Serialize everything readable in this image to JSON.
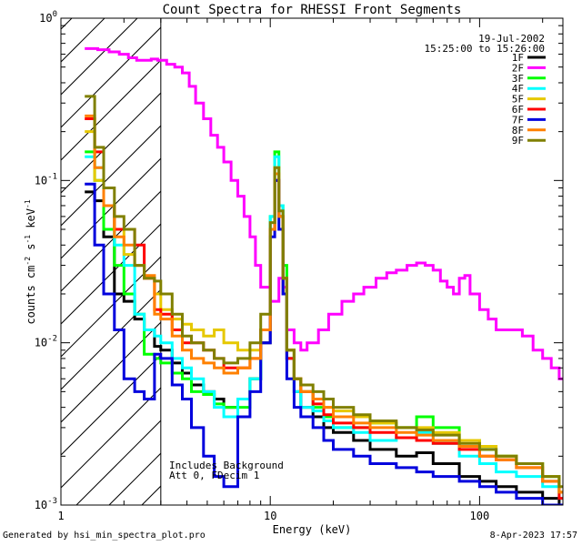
{
  "chart_data": {
    "type": "line",
    "title": "Count Spectra for RHESSI Front Segments",
    "xlabel": "Energy (keV)",
    "ylabel_main": "counts cm",
    "ylabel_sup1": "-2",
    "ylabel_mid": " s",
    "ylabel_sup2": "-1",
    "ylabel_end": " keV",
    "ylabel_sup3": "-1",
    "x_scale": "log",
    "y_scale": "log",
    "xlim": [
      1,
      250
    ],
    "ylim": [
      0.001,
      1
    ],
    "x_ticks": [
      {
        "value": 1,
        "label": "1"
      },
      {
        "value": 10,
        "label": "10"
      },
      {
        "value": 100,
        "label": "100"
      }
    ],
    "y_ticks": [
      {
        "value": 0.001,
        "base": "10",
        "exp": "-3"
      },
      {
        "value": 0.01,
        "base": "10",
        "exp": "-2"
      },
      {
        "value": 0.1,
        "base": "10",
        "exp": "-1"
      },
      {
        "value": 1,
        "base": "10",
        "exp": "0"
      }
    ],
    "hatched_region": [
      1,
      3
    ],
    "date": "19-Jul-2002",
    "time_range": "15:25:00 to 15:26:00",
    "annotation_lines": [
      "Includes Background",
      "Att 0, FDecim 1"
    ],
    "legend_position": "top-right",
    "series": [
      {
        "name": "1F",
        "color": "#000000",
        "x": [
          1.3,
          1.45,
          1.6,
          1.8,
          2.0,
          2.25,
          2.5,
          2.8,
          3.0,
          3.4,
          3.8,
          4.2,
          4.8,
          5.4,
          6.0,
          7.0,
          8.0,
          9.0,
          10.0,
          10.5,
          11.0,
          11.5,
          12.0,
          13.0,
          14.0,
          16.0,
          18.0,
          20.0,
          25.0,
          30.0,
          40.0,
          50.0,
          60.0,
          80.0,
          100.0,
          120.0,
          150.0,
          200.0,
          240.0
        ],
        "y": [
          0.085,
          0.075,
          0.045,
          0.02,
          0.018,
          0.014,
          0.012,
          0.0095,
          0.009,
          0.0075,
          0.0065,
          0.0055,
          0.005,
          0.0045,
          0.004,
          0.0045,
          0.006,
          0.01,
          0.05,
          0.1,
          0.06,
          0.02,
          0.008,
          0.005,
          0.004,
          0.0035,
          0.003,
          0.0028,
          0.0025,
          0.0022,
          0.002,
          0.0021,
          0.0018,
          0.0015,
          0.0014,
          0.0013,
          0.0012,
          0.0011,
          0.001
        ]
      },
      {
        "name": "2F",
        "color": "#ff00ff",
        "x": [
          1.3,
          1.5,
          1.7,
          1.9,
          2.1,
          2.3,
          2.5,
          2.7,
          2.9,
          3.2,
          3.5,
          3.8,
          4.1,
          4.4,
          4.8,
          5.2,
          5.6,
          6.0,
          6.5,
          7.0,
          7.5,
          8.0,
          8.5,
          9.0,
          10.0,
          11.0,
          11.5,
          12.0,
          13.0,
          14.0,
          15.0,
          17.0,
          19.0,
          22.0,
          25.0,
          28.0,
          32.0,
          36.0,
          40.0,
          45.0,
          50.0,
          55.0,
          60.0,
          65.0,
          70.0,
          75.0,
          80.0,
          85.0,
          90.0,
          100.0,
          110.0,
          120.0,
          140.0,
          160.0,
          180.0,
          200.0,
          220.0,
          240.0
        ],
        "y": [
          0.65,
          0.64,
          0.62,
          0.6,
          0.57,
          0.55,
          0.55,
          0.56,
          0.55,
          0.52,
          0.5,
          0.46,
          0.38,
          0.3,
          0.24,
          0.19,
          0.16,
          0.13,
          0.1,
          0.08,
          0.06,
          0.045,
          0.03,
          0.022,
          0.018,
          0.025,
          0.022,
          0.012,
          0.01,
          0.009,
          0.01,
          0.012,
          0.015,
          0.018,
          0.02,
          0.022,
          0.025,
          0.027,
          0.028,
          0.03,
          0.031,
          0.03,
          0.028,
          0.024,
          0.022,
          0.02,
          0.025,
          0.026,
          0.02,
          0.016,
          0.014,
          0.012,
          0.012,
          0.011,
          0.009,
          0.008,
          0.007,
          0.006
        ]
      },
      {
        "name": "3F",
        "color": "#00ff00",
        "x": [
          1.3,
          1.45,
          1.6,
          1.8,
          2.0,
          2.25,
          2.5,
          2.8,
          3.0,
          3.4,
          3.8,
          4.2,
          4.8,
          5.4,
          6.0,
          7.0,
          8.0,
          9.0,
          10.0,
          10.5,
          11.0,
          11.5,
          12.0,
          13.0,
          14.0,
          16.0,
          18.0,
          20.0,
          25.0,
          30.0,
          40.0,
          50.0,
          60.0,
          80.0,
          100.0,
          120.0,
          150.0,
          200.0,
          240.0
        ],
        "y": [
          0.15,
          0.1,
          0.05,
          0.03,
          0.02,
          0.015,
          0.0085,
          0.008,
          0.0075,
          0.0065,
          0.006,
          0.005,
          0.0048,
          0.0042,
          0.004,
          0.004,
          0.006,
          0.012,
          0.06,
          0.15,
          0.07,
          0.03,
          0.009,
          0.006,
          0.005,
          0.004,
          0.0035,
          0.003,
          0.003,
          0.0032,
          0.003,
          0.0035,
          0.003,
          0.0025,
          0.0022,
          0.002,
          0.0018,
          0.0015,
          0.0012
        ]
      },
      {
        "name": "4F",
        "color": "#00ffff",
        "x": [
          1.3,
          1.45,
          1.6,
          1.8,
          2.0,
          2.25,
          2.5,
          2.8,
          3.0,
          3.4,
          3.8,
          4.2,
          4.8,
          5.4,
          6.0,
          7.0,
          8.0,
          9.0,
          10.0,
          10.5,
          11.0,
          11.5,
          12.0,
          13.0,
          14.0,
          16.0,
          18.0,
          20.0,
          25.0,
          30.0,
          40.0,
          50.0,
          60.0,
          80.0,
          100.0,
          120.0,
          150.0,
          200.0,
          240.0
        ],
        "y": [
          0.14,
          0.12,
          0.07,
          0.04,
          0.03,
          0.015,
          0.012,
          0.011,
          0.01,
          0.008,
          0.007,
          0.006,
          0.005,
          0.004,
          0.0035,
          0.0045,
          0.006,
          0.012,
          0.06,
          0.14,
          0.07,
          0.025,
          0.008,
          0.005,
          0.004,
          0.0038,
          0.0033,
          0.003,
          0.0028,
          0.0025,
          0.0026,
          0.0028,
          0.0024,
          0.002,
          0.0018,
          0.0016,
          0.0015,
          0.0013,
          0.0011
        ]
      },
      {
        "name": "5F",
        "color": "#e6c800",
        "x": [
          1.3,
          1.45,
          1.6,
          1.8,
          2.0,
          2.25,
          2.5,
          2.8,
          3.0,
          3.4,
          3.8,
          4.2,
          4.8,
          5.4,
          6.0,
          7.0,
          8.0,
          9.0,
          10.0,
          10.5,
          11.0,
          11.5,
          12.0,
          13.0,
          14.0,
          16.0,
          18.0,
          20.0,
          25.0,
          30.0,
          40.0,
          50.0,
          60.0,
          80.0,
          100.0,
          120.0,
          150.0,
          200.0,
          240.0
        ],
        "y": [
          0.2,
          0.1,
          0.07,
          0.05,
          0.035,
          0.03,
          0.025,
          0.02,
          0.016,
          0.014,
          0.013,
          0.012,
          0.011,
          0.012,
          0.01,
          0.009,
          0.009,
          0.012,
          0.05,
          0.12,
          0.06,
          0.02,
          0.009,
          0.006,
          0.005,
          0.0045,
          0.004,
          0.0038,
          0.0035,
          0.0032,
          0.003,
          0.003,
          0.0028,
          0.0025,
          0.0023,
          0.002,
          0.0018,
          0.0015,
          0.0012
        ]
      },
      {
        "name": "6F",
        "color": "#ff0000",
        "x": [
          1.3,
          1.45,
          1.6,
          1.8,
          2.0,
          2.25,
          2.5,
          2.8,
          3.0,
          3.4,
          3.8,
          4.2,
          4.8,
          5.4,
          6.0,
          7.0,
          8.0,
          9.0,
          10.0,
          10.5,
          11.0,
          11.5,
          12.0,
          13.0,
          14.0,
          16.0,
          18.0,
          20.0,
          25.0,
          30.0,
          40.0,
          50.0,
          60.0,
          80.0,
          100.0,
          120.0,
          150.0,
          200.0,
          240.0
        ],
        "y": [
          0.24,
          0.15,
          0.07,
          0.05,
          0.05,
          0.04,
          0.025,
          0.016,
          0.015,
          0.012,
          0.01,
          0.01,
          0.009,
          0.008,
          0.007,
          0.007,
          0.008,
          0.012,
          0.05,
          0.1,
          0.06,
          0.025,
          0.008,
          0.006,
          0.005,
          0.0042,
          0.0036,
          0.0032,
          0.003,
          0.0028,
          0.0026,
          0.0025,
          0.0024,
          0.0022,
          0.002,
          0.0019,
          0.0017,
          0.0014,
          0.0011
        ]
      },
      {
        "name": "7F",
        "color": "#0000dd",
        "x": [
          1.3,
          1.45,
          1.6,
          1.8,
          2.0,
          2.25,
          2.5,
          2.8,
          3.0,
          3.4,
          3.8,
          4.2,
          4.8,
          5.4,
          6.0,
          7.0,
          8.0,
          9.0,
          10.0,
          10.5,
          11.0,
          11.5,
          12.0,
          13.0,
          14.0,
          16.0,
          18.0,
          20.0,
          25.0,
          30.0,
          40.0,
          50.0,
          60.0,
          80.0,
          100.0,
          120.0,
          150.0,
          200.0,
          240.0
        ],
        "y": [
          0.095,
          0.04,
          0.02,
          0.012,
          0.006,
          0.005,
          0.0045,
          0.0085,
          0.008,
          0.0055,
          0.0045,
          0.003,
          0.002,
          0.0015,
          0.0013,
          0.0035,
          0.005,
          0.01,
          0.045,
          0.1,
          0.05,
          0.02,
          0.006,
          0.004,
          0.0035,
          0.003,
          0.0025,
          0.0022,
          0.002,
          0.0018,
          0.0017,
          0.0016,
          0.0015,
          0.0014,
          0.0013,
          0.0012,
          0.0011,
          0.001,
          0.001
        ]
      },
      {
        "name": "8F",
        "color": "#ff8000",
        "x": [
          1.3,
          1.45,
          1.6,
          1.8,
          2.0,
          2.25,
          2.5,
          2.8,
          3.0,
          3.4,
          3.8,
          4.2,
          4.8,
          5.4,
          6.0,
          7.0,
          8.0,
          9.0,
          10.0,
          10.5,
          11.0,
          11.5,
          12.0,
          13.0,
          14.0,
          16.0,
          18.0,
          20.0,
          25.0,
          30.0,
          40.0,
          50.0,
          60.0,
          80.0,
          100.0,
          120.0,
          150.0,
          200.0,
          240.0
        ],
        "y": [
          0.25,
          0.12,
          0.07,
          0.045,
          0.04,
          0.03,
          0.026,
          0.015,
          0.014,
          0.011,
          0.009,
          0.008,
          0.0075,
          0.007,
          0.0065,
          0.007,
          0.008,
          0.012,
          0.05,
          0.11,
          0.06,
          0.025,
          0.009,
          0.006,
          0.005,
          0.0045,
          0.004,
          0.0035,
          0.0032,
          0.003,
          0.0028,
          0.0027,
          0.0025,
          0.0023,
          0.002,
          0.0019,
          0.0017,
          0.0014,
          0.0012
        ]
      },
      {
        "name": "9F",
        "color": "#808000",
        "x": [
          1.3,
          1.45,
          1.6,
          1.8,
          2.0,
          2.25,
          2.5,
          2.8,
          3.0,
          3.4,
          3.8,
          4.2,
          4.8,
          5.4,
          6.0,
          7.0,
          8.0,
          9.0,
          10.0,
          10.5,
          11.0,
          11.5,
          12.0,
          13.0,
          14.0,
          16.0,
          18.0,
          20.0,
          25.0,
          30.0,
          40.0,
          50.0,
          60.0,
          80.0,
          100.0,
          120.0,
          150.0,
          200.0,
          240.0
        ],
        "y": [
          0.33,
          0.16,
          0.09,
          0.06,
          0.05,
          0.03,
          0.025,
          0.024,
          0.02,
          0.015,
          0.011,
          0.01,
          0.009,
          0.008,
          0.0075,
          0.008,
          0.01,
          0.015,
          0.055,
          0.12,
          0.065,
          0.025,
          0.009,
          0.006,
          0.0055,
          0.005,
          0.0045,
          0.004,
          0.0036,
          0.0033,
          0.003,
          0.0029,
          0.0027,
          0.0024,
          0.0022,
          0.002,
          0.0018,
          0.0015,
          0.0013
        ]
      }
    ]
  },
  "footer": {
    "generated": "Generated by hsi_min_spectra_plot.pro",
    "timestamp": "8-Apr-2023 17:57"
  }
}
